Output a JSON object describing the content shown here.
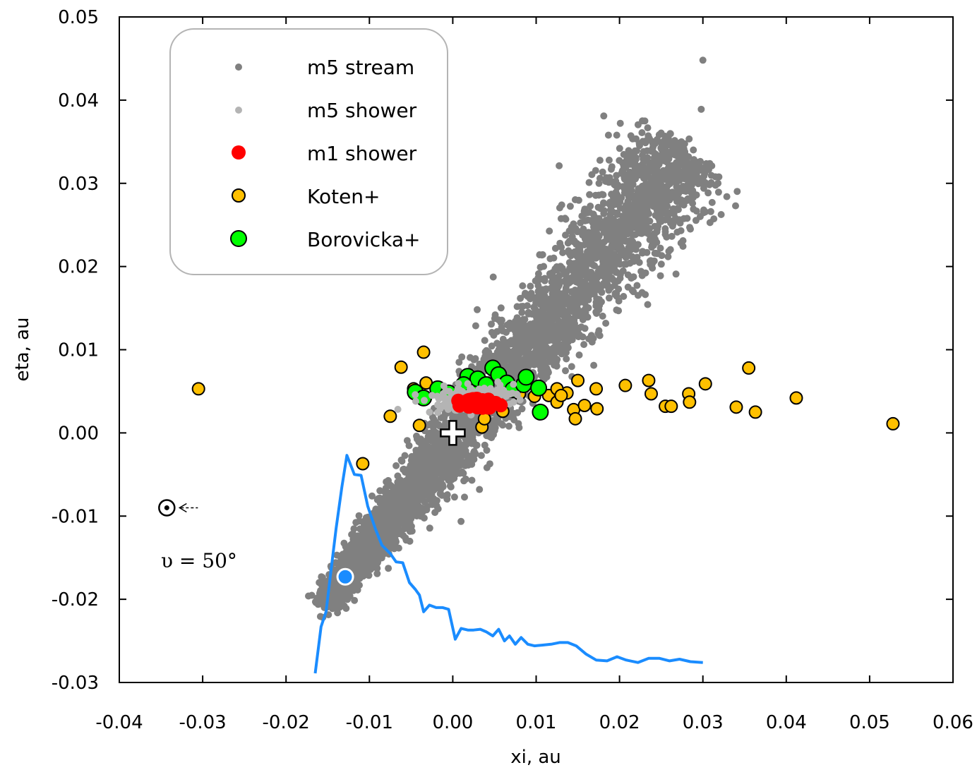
{
  "chart_data": {
    "type": "scatter",
    "title": "",
    "xlabel": "xi, au",
    "ylabel": "eta, au",
    "xlim": [
      -0.04,
      0.06
    ],
    "ylim": [
      -0.03,
      0.05
    ],
    "x_ticks": [
      -0.04,
      -0.03,
      -0.02,
      -0.01,
      0.0,
      0.01,
      0.02,
      0.03,
      0.04,
      0.05,
      0.06
    ],
    "x_tick_labels": [
      "-0.04",
      "-0.03",
      "-0.02",
      "-0.01",
      "0.00",
      "0.01",
      "0.02",
      "0.03",
      "0.04",
      "0.05",
      "0.06"
    ],
    "y_ticks": [
      -0.03,
      -0.02,
      -0.01,
      0.0,
      0.01,
      0.02,
      0.03,
      0.04,
      0.05
    ],
    "y_tick_labels": [
      "-0.03",
      "-0.02",
      "-0.01",
      "0.00",
      "0.01",
      "0.02",
      "0.03",
      "0.04",
      "0.05"
    ],
    "grid": false,
    "legend_position": "top-left",
    "legend": [
      {
        "label": "m5 stream",
        "color": "#808080",
        "marker": "small-dot"
      },
      {
        "label": "m5 shower",
        "color": "#b4b4b4",
        "marker": "small-dot"
      },
      {
        "label": "m1 shower",
        "color": "#ff0000",
        "marker": "dot"
      },
      {
        "label": "Koten+",
        "color": "#ffc000",
        "marker": "outlined-circle"
      },
      {
        "label": "Borovicka+",
        "color": "#00ff00",
        "marker": "outlined-circle-large"
      }
    ],
    "m5_stream_band": {
      "description": "dense diagonal band of several thousand simulated particles",
      "axis_start": [
        -0.0155,
        -0.0205
      ],
      "axis_end": [
        0.028,
        0.034
      ],
      "approx_outliers": [
        [
          0.03,
          0.0448
        ],
        [
          0.0298,
          0.0389
        ],
        [
          0.0032,
          -0.0068
        ],
        [
          0.027,
          0.027
        ],
        [
          0.0285,
          0.0245
        ]
      ]
    },
    "m5_shower_cluster": {
      "center": [
        0.002,
        0.0042
      ],
      "spread": [
        0.005,
        0.0012
      ]
    },
    "m1_shower_cluster": {
      "center": [
        0.0032,
        0.0037
      ],
      "spread": [
        0.0017,
        0.0006
      ]
    },
    "koten_points": [
      [
        -0.0305,
        0.0053
      ],
      [
        -0.0035,
        0.0097
      ],
      [
        -0.0062,
        0.0079
      ],
      [
        -0.0047,
        0.0053
      ],
      [
        -0.0032,
        0.006
      ],
      [
        -0.0075,
        0.002
      ],
      [
        -0.004,
        0.0009
      ],
      [
        -0.0108,
        -0.0037
      ],
      [
        0.0035,
        0.0007
      ],
      [
        0.0038,
        0.0017
      ],
      [
        0.006,
        0.0026
      ],
      [
        0.008,
        0.0047
      ],
      [
        0.0098,
        0.0044
      ],
      [
        0.0115,
        0.0045
      ],
      [
        0.0125,
        0.0037
      ],
      [
        0.0137,
        0.0048
      ],
      [
        0.0145,
        0.0028
      ],
      [
        0.015,
        0.0063
      ],
      [
        0.0158,
        0.0033
      ],
      [
        0.0147,
        0.0017
      ],
      [
        0.0172,
        0.0053
      ],
      [
        0.0173,
        0.0029
      ],
      [
        0.0125,
        0.0053
      ],
      [
        0.013,
        0.0045
      ],
      [
        0.0207,
        0.0057
      ],
      [
        0.0235,
        0.0063
      ],
      [
        0.0238,
        0.0047
      ],
      [
        0.0255,
        0.0032
      ],
      [
        0.0262,
        0.0032
      ],
      [
        0.0283,
        0.0047
      ],
      [
        0.0284,
        0.0037
      ],
      [
        0.0303,
        0.0059
      ],
      [
        0.034,
        0.0031
      ],
      [
        0.0355,
        0.0078
      ],
      [
        0.0363,
        0.0025
      ],
      [
        0.0412,
        0.0042
      ],
      [
        0.0528,
        0.0011
      ]
    ],
    "borovicka_points": [
      [
        -0.0045,
        0.0049
      ],
      [
        -0.0035,
        0.0042
      ],
      [
        -0.0018,
        0.0053
      ],
      [
        -0.0005,
        0.0048
      ],
      [
        0.0018,
        0.0068
      ],
      [
        0.003,
        0.0065
      ],
      [
        0.004,
        0.0058
      ],
      [
        0.0048,
        0.0078
      ],
      [
        0.0055,
        0.007
      ],
      [
        0.0065,
        0.006
      ],
      [
        0.0072,
        0.0052
      ],
      [
        0.0085,
        0.0058
      ],
      [
        0.0088,
        0.0067
      ],
      [
        0.0103,
        0.0054
      ],
      [
        0.0105,
        0.0025
      ],
      [
        0.0013,
        0.0058
      ],
      [
        0.0025,
        0.0047
      ]
    ],
    "blue_curve": {
      "color": "#1a8cff",
      "x": [
        -0.0165,
        -0.0158,
        -0.0152,
        -0.0147,
        -0.014,
        -0.0133,
        -0.0127,
        -0.0118,
        -0.011,
        -0.0102,
        -0.0093,
        -0.0085,
        -0.0075,
        -0.0068,
        -0.006,
        -0.0052,
        -0.0045,
        -0.004,
        -0.0035,
        -0.0028,
        -0.002,
        -0.0012,
        -0.0005,
        0.0003,
        0.001,
        0.0018,
        0.0025,
        0.0033,
        0.004,
        0.0048,
        0.0055,
        0.0062,
        0.0068,
        0.0075,
        0.0082,
        0.009,
        0.0098,
        0.0108,
        0.0118,
        0.0128,
        0.0138,
        0.0148,
        0.016,
        0.0172,
        0.0185,
        0.0197,
        0.0208,
        0.0222,
        0.0235,
        0.0248,
        0.026,
        0.0272,
        0.0285,
        0.03
      ],
      "y": [
        -0.0289,
        -0.0233,
        -0.0215,
        -0.0173,
        -0.0115,
        -0.0065,
        -0.0027,
        -0.005,
        -0.0051,
        -0.0088,
        -0.0115,
        -0.0135,
        -0.0145,
        -0.0155,
        -0.0156,
        -0.018,
        -0.0188,
        -0.0195,
        -0.0215,
        -0.0207,
        -0.021,
        -0.021,
        -0.0212,
        -0.0248,
        -0.0235,
        -0.0237,
        -0.0237,
        -0.0236,
        -0.0239,
        -0.0244,
        -0.0236,
        -0.025,
        -0.0244,
        -0.0254,
        -0.0246,
        -0.0254,
        -0.0256,
        -0.0255,
        -0.0254,
        -0.0252,
        -0.0252,
        -0.0256,
        -0.0266,
        -0.0273,
        -0.0274,
        -0.0269,
        -0.0273,
        -0.0276,
        -0.0271,
        -0.0271,
        -0.0274,
        -0.0272,
        -0.0275,
        -0.0276
      ]
    },
    "blue_point": {
      "x": -0.0129,
      "y": -0.0173,
      "color": "#1a8cff"
    },
    "origin_marker": {
      "x": 0.0,
      "y": 0.0,
      "symbol": "plus"
    },
    "sun_marker": {
      "x": -0.0343,
      "y": -0.009,
      "symbol": "circled-dot-with-arrow"
    },
    "annotation": {
      "text": "υ = 50°",
      "x": -0.0355,
      "y": -0.0153
    }
  }
}
